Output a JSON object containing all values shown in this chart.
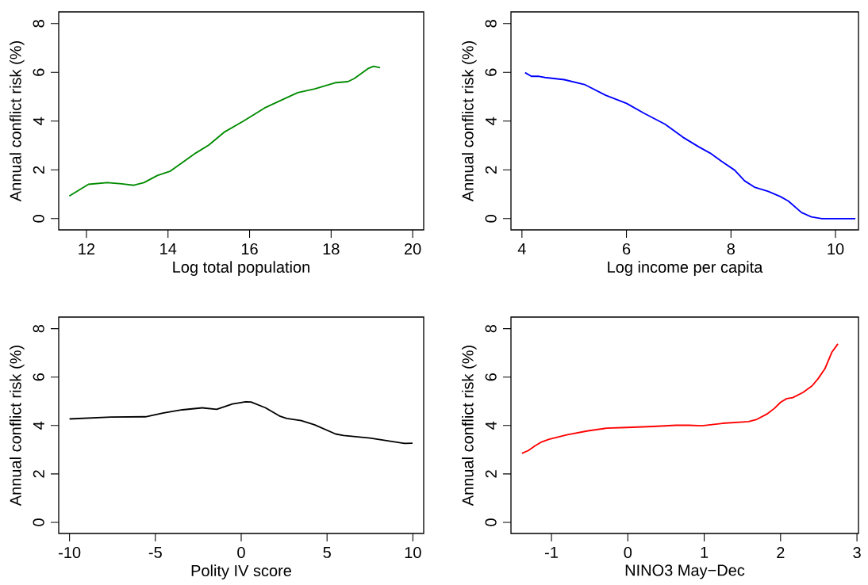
{
  "chart_data": [
    {
      "type": "line",
      "xlabel": "Log total population",
      "ylabel": "Annual conflict risk (%)",
      "xlim": [
        11.32,
        20.27
      ],
      "ylim": [
        -0.46,
        8.48
      ],
      "xticks": [
        12,
        14,
        16,
        18,
        20
      ],
      "yticks": [
        0,
        2,
        4,
        6,
        8
      ],
      "color": "#008b00",
      "x": [
        11.58,
        12.05,
        12.51,
        12.86,
        13.16,
        13.41,
        13.74,
        14.06,
        14.68,
        15.0,
        15.39,
        15.85,
        16.37,
        16.82,
        17.18,
        17.6,
        18.12,
        18.41,
        18.57,
        18.9,
        19.04,
        19.2
      ],
      "values": [
        0.93,
        1.41,
        1.48,
        1.43,
        1.37,
        1.48,
        1.77,
        1.95,
        2.69,
        3.02,
        3.56,
        4.0,
        4.54,
        4.89,
        5.17,
        5.32,
        5.58,
        5.62,
        5.75,
        6.15,
        6.25,
        6.19
      ]
    },
    {
      "type": "line",
      "xlabel": "Log income per capita",
      "ylabel": "Annual conflict risk (%)",
      "xlim": [
        3.79,
        10.44
      ],
      "ylim": [
        -0.46,
        8.48
      ],
      "xticks": [
        4,
        6,
        8,
        10
      ],
      "yticks": [
        0,
        2,
        4,
        6,
        8
      ],
      "color": "#0000ff",
      "x": [
        4.06,
        4.18,
        4.31,
        4.44,
        4.81,
        5.21,
        5.6,
        6.0,
        6.34,
        6.74,
        7.08,
        7.38,
        7.6,
        7.82,
        8.07,
        8.26,
        8.46,
        8.71,
        8.95,
        9.1,
        9.35,
        9.54,
        9.74,
        10.38
      ],
      "values": [
        5.99,
        5.84,
        5.84,
        5.79,
        5.7,
        5.49,
        5.06,
        4.73,
        4.32,
        3.87,
        3.34,
        2.95,
        2.69,
        2.35,
        1.99,
        1.55,
        1.28,
        1.12,
        0.9,
        0.72,
        0.25,
        0.07,
        0,
        0
      ]
    },
    {
      "type": "line",
      "xlabel": "Polity IV score",
      "ylabel": "Annual conflict risk (%)",
      "xlim": [
        -10.63,
        10.63
      ],
      "ylim": [
        -0.46,
        8.48
      ],
      "xticks": [
        -10,
        -5,
        0,
        5,
        10
      ],
      "yticks": [
        0,
        2,
        4,
        6,
        8
      ],
      "color": "#000000",
      "x": [
        -10,
        -7.58,
        -5.58,
        -4.51,
        -3.43,
        -2.27,
        -1.43,
        -0.51,
        0.26,
        0.57,
        1.42,
        2.27,
        2.65,
        3.5,
        4.27,
        5.5,
        5.96,
        7.5,
        9.51,
        9.98
      ],
      "values": [
        4.27,
        4.35,
        4.36,
        4.52,
        4.65,
        4.73,
        4.67,
        4.89,
        4.98,
        4.97,
        4.73,
        4.38,
        4.29,
        4.2,
        4.03,
        3.65,
        3.59,
        3.48,
        3.26,
        3.27
      ]
    },
    {
      "type": "line",
      "xlabel": "NINO3 May−Dec",
      "ylabel": "Annual conflict risk (%)",
      "xlim": [
        -1.53,
        3.02
      ],
      "ylim": [
        -0.46,
        8.48
      ],
      "xticks": [
        -1,
        0,
        1,
        2,
        3
      ],
      "yticks": [
        0,
        2,
        4,
        6,
        8
      ],
      "color": "#ff0000",
      "x": [
        -1.386,
        -1.3,
        -1.22,
        -1.13,
        -1.03,
        -0.79,
        -0.52,
        -0.28,
        -0.01,
        0.33,
        0.63,
        0.8,
        0.97,
        1.24,
        1.58,
        1.68,
        1.82,
        1.92,
        2.0,
        2.08,
        2.16,
        2.29,
        2.41,
        2.49,
        2.58,
        2.67,
        2.75
      ],
      "values": [
        2.85,
        2.97,
        3.15,
        3.32,
        3.43,
        3.62,
        3.78,
        3.89,
        3.92,
        3.96,
        4.01,
        4.01,
        3.99,
        4.09,
        4.16,
        4.24,
        4.47,
        4.71,
        4.96,
        5.11,
        5.15,
        5.36,
        5.63,
        5.93,
        6.34,
        7.02,
        7.37
      ]
    }
  ]
}
